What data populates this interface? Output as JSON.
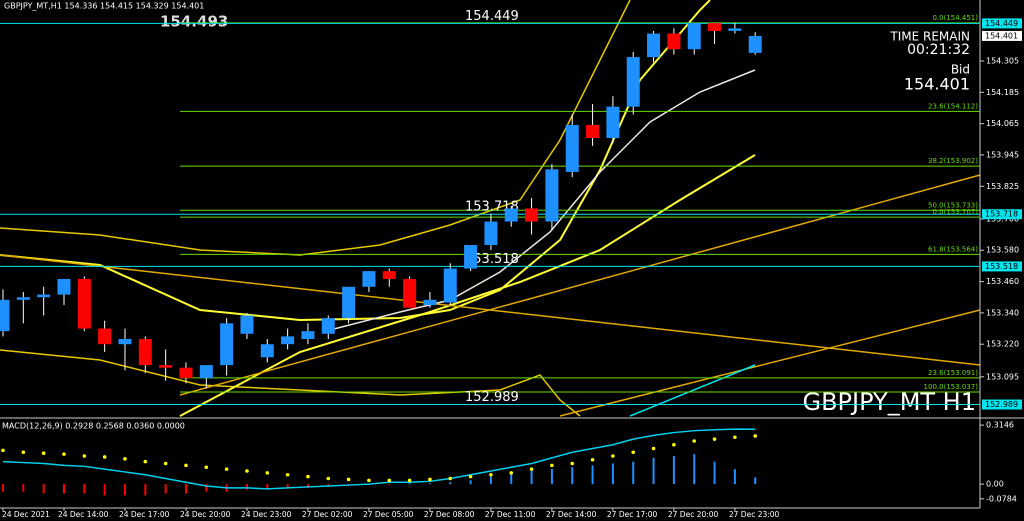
{
  "chart_data": [
    {
      "type": "candlestick",
      "title": "GBPJPY_MT,H1  154.336 154.415 154.329 154.401",
      "watermark": "GBPJPY_MT H1",
      "marker_price": 154.493,
      "timer_label": "TIME REMAIN",
      "timer": "00:21:32",
      "bid_label": "Bid",
      "categories": [
        "24 Dec 2021",
        null,
        null,
        "24 Dec 14:00",
        null,
        null,
        "24 Dec 17:00",
        null,
        null,
        "24 Dec 20:00",
        null,
        null,
        "24 Dec 23:00",
        null,
        null,
        "27 Dec 02:00",
        null,
        null,
        "27 Dec 05:00",
        null,
        null,
        "27 Dec 08:00",
        null,
        null,
        "27 Dec 11:00",
        null,
        null,
        "27 Dec 14:00",
        null,
        null,
        "27 Dec 17:00",
        null,
        null,
        "27 Dec 20:00",
        null,
        null,
        "27 Dec 23:00",
        null
      ],
      "open": [
        153.27,
        153.39,
        153.4,
        153.41,
        153.47,
        153.28,
        153.22,
        153.24,
        153.14,
        153.13,
        153.09,
        153.14,
        153.26,
        153.17,
        153.22,
        153.24,
        153.26,
        153.32,
        153.44,
        153.5,
        153.47,
        153.37,
        153.38,
        153.51,
        153.6,
        153.69,
        153.74,
        153.69,
        153.88,
        154.06,
        154.01,
        154.13,
        154.32,
        154.41,
        154.35,
        154.45,
        154.42,
        154.336
      ],
      "high": [
        153.43,
        153.42,
        153.44,
        153.47,
        153.48,
        153.31,
        153.28,
        153.25,
        153.2,
        153.15,
        153.14,
        153.32,
        153.34,
        153.24,
        153.28,
        153.3,
        153.33,
        153.44,
        153.5,
        153.51,
        153.48,
        153.42,
        153.53,
        153.6,
        153.72,
        153.75,
        153.78,
        153.91,
        154.1,
        154.14,
        154.17,
        154.34,
        154.42,
        154.43,
        154.45,
        154.45,
        154.45,
        154.415
      ],
      "low": [
        153.25,
        153.3,
        153.33,
        153.37,
        153.27,
        153.19,
        153.12,
        153.11,
        153.08,
        153.07,
        153.05,
        153.1,
        153.24,
        153.15,
        153.2,
        153.22,
        153.24,
        153.3,
        153.42,
        153.44,
        153.36,
        153.36,
        153.37,
        153.5,
        153.58,
        153.67,
        153.64,
        153.66,
        153.86,
        153.98,
        153.99,
        154.1,
        154.3,
        154.33,
        154.33,
        154.37,
        154.41,
        154.329
      ],
      "close": [
        153.39,
        153.4,
        153.41,
        153.47,
        153.28,
        153.22,
        153.24,
        153.14,
        153.13,
        153.09,
        153.14,
        153.3,
        153.33,
        153.22,
        153.25,
        153.27,
        153.32,
        153.44,
        153.5,
        153.47,
        153.36,
        153.39,
        153.51,
        153.6,
        153.69,
        153.74,
        153.69,
        153.89,
        154.06,
        154.01,
        154.13,
        154.32,
        154.41,
        154.35,
        154.45,
        154.42,
        154.43,
        154.401
      ],
      "up_color": "#1e90ff",
      "down_color": "#ff0000",
      "levels": [
        154.449,
        153.718,
        153.518,
        152.989
      ],
      "level_color": "#00e5ee",
      "fib_levels": [
        {
          "value": 154.451,
          "label": "0.0(154.451)"
        },
        {
          "value": 154.112,
          "label": "23.6(154.112)"
        },
        {
          "value": 153.902,
          "label": "38.2(153.902)"
        },
        {
          "value": 153.733,
          "label": "50.0(153.733)"
        },
        {
          "value": 153.707,
          "label": "0.0(153.707)"
        },
        {
          "value": 153.564,
          "label": "61.8(153.564)"
        },
        {
          "value": 153.091,
          "label": "23.6(153.091)"
        },
        {
          "value": 153.037,
          "label": "100.0(153.037)"
        }
      ],
      "fib_color": "#66dd00",
      "ylim": [
        152.945,
        154.485
      ],
      "yticks": [
        154.305,
        154.185,
        154.065,
        153.945,
        153.825,
        {
          "value": 153.7,
          "label": "153.700"
        },
        {
          "value": 153.58,
          "label": "153.580"
        },
        {
          "value": 153.46,
          "label": "153.460"
        },
        {
          "value": 153.34,
          "label": "153.340"
        },
        {
          "value": 153.22,
          "label": "153.220"
        },
        153.095
      ]
    },
    {
      "type": "macd",
      "title": "MACD(12,26,9) 0.2928 0.2568 0.0360 0.0000",
      "series": [
        {
          "style": "bar",
          "color": "#1e90ff",
          "negative_color": "#ff0000",
          "values": [
            -0.04,
            -0.04,
            -0.05,
            -0.05,
            -0.05,
            -0.06,
            -0.06,
            -0.06,
            -0.05,
            -0.05,
            -0.04,
            -0.04,
            -0.03,
            -0.03,
            -0.02,
            -0.02,
            -0.01,
            -0.01,
            -0.005,
            -0.005,
            0.005,
            0.005,
            0.01,
            0.02,
            0.04,
            0.06,
            0.07,
            0.08,
            0.09,
            0.1,
            0.11,
            0.12,
            0.14,
            0.15,
            0.16,
            0.12,
            0.08,
            0.036
          ]
        },
        {
          "style": "line",
          "color": "#00d0f0",
          "values": [
            0.12,
            0.115,
            0.11,
            0.1,
            0.095,
            0.08,
            0.065,
            0.05,
            0.03,
            0.01,
            -0.01,
            -0.02,
            -0.02,
            -0.025,
            -0.02,
            -0.015,
            -0.01,
            -0.005,
            0.0,
            0.01,
            0.01,
            0.015,
            0.03,
            0.05,
            0.07,
            0.09,
            0.11,
            0.14,
            0.17,
            0.19,
            0.21,
            0.24,
            0.26,
            0.275,
            0.285,
            0.29,
            0.293,
            0.2928
          ]
        },
        {
          "style": "dots",
          "color": "#ffff00",
          "values": [
            0.18,
            0.17,
            0.165,
            0.16,
            0.15,
            0.145,
            0.135,
            0.12,
            0.11,
            0.1,
            0.09,
            0.08,
            0.07,
            0.06,
            0.05,
            0.04,
            0.03,
            0.025,
            0.02,
            0.02,
            0.02,
            0.025,
            0.03,
            0.04,
            0.05,
            0.06,
            0.08,
            0.1,
            0.11,
            0.13,
            0.15,
            0.17,
            0.19,
            0.21,
            0.23,
            0.24,
            0.25,
            0.2568
          ]
        }
      ],
      "ylim": [
        -0.122,
        0.342
      ],
      "yticks": [
        0.3146,
        {
          "value": 0,
          "label": "0.00"
        },
        -0.0784
      ]
    }
  ]
}
